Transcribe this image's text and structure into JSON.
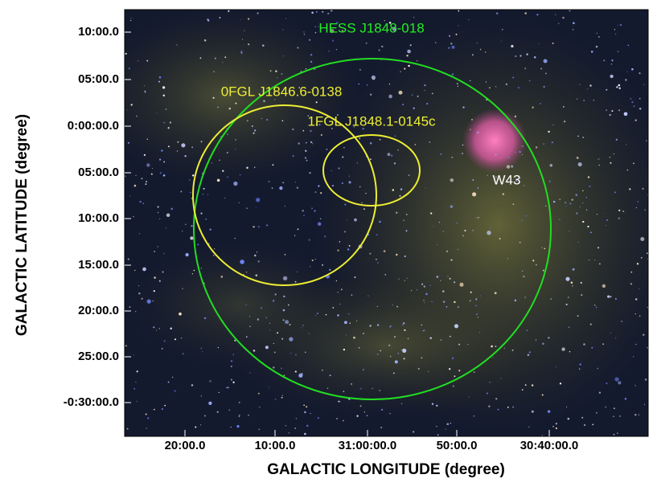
{
  "axes": {
    "x_label": "GALACTIC LONGITUDE (degree)",
    "y_label": "GALACTIC LATITUDE (degree)",
    "x_ticks": [
      "20:00.0",
      "10:00.0",
      "31:00:00.0",
      "50:00.0",
      "30:40:00.0"
    ],
    "y_ticks": [
      "10:00.0",
      "05:00.0",
      "0:00:00.0",
      "05:00.0",
      "10:00.0",
      "15:00.0",
      "20:00.0",
      "25:00.0",
      "-0:30:00.0"
    ]
  },
  "regions": [
    {
      "label": "HESS J1848-018"
    },
    {
      "label": "0FGL J1846.6-0138"
    },
    {
      "label": "1FGL J1848.1-0145c"
    }
  ],
  "annotations": [
    {
      "label": "W43"
    }
  ]
}
